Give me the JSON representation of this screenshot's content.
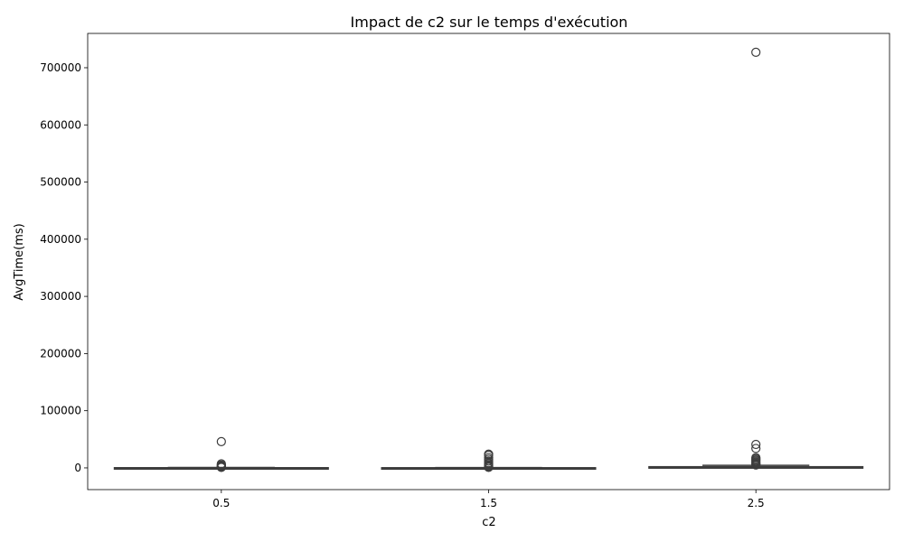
{
  "chart_data": {
    "type": "box",
    "title": "Impact de c2 sur le temps d'exécution",
    "xlabel": "c2",
    "ylabel": "AvgTime(ms)",
    "ylim": [
      -38000,
      760000
    ],
    "yticks": [
      0,
      100000,
      200000,
      300000,
      400000,
      500000,
      600000,
      700000
    ],
    "categories": [
      "0.5",
      "1.5",
      "2.5"
    ],
    "boxes": [
      {
        "category": "0.5",
        "whisker_low": 0,
        "q1": 0,
        "median": 0,
        "q3": 300,
        "whisker_high": 700,
        "outliers": [
          46000,
          7000,
          5000,
          3500,
          2500,
          1800,
          1200,
          900
        ]
      },
      {
        "category": "1.5",
        "whisker_low": 0,
        "q1": 0,
        "median": 0,
        "q3": 200,
        "whisker_high": 500,
        "outliers": [
          24000,
          22000,
          18000,
          15000,
          12000,
          9000,
          7000,
          5000,
          3500,
          2500,
          1500,
          900
        ]
      },
      {
        "category": "2.5",
        "whisker_low": 0,
        "q1": 0,
        "median": 0,
        "q3": 2000,
        "whisker_high": 4500,
        "outliers": [
          727000,
          41000,
          34000,
          18000,
          16000,
          14000,
          12000,
          10000,
          8500,
          7000,
          6000,
          5000
        ]
      }
    ],
    "colors": {
      "box_stroke": "#3d3d3d",
      "box_fill": "#ffffff",
      "outlier_stroke": "#3d3d3d"
    },
    "grid": false,
    "legend": "none"
  }
}
